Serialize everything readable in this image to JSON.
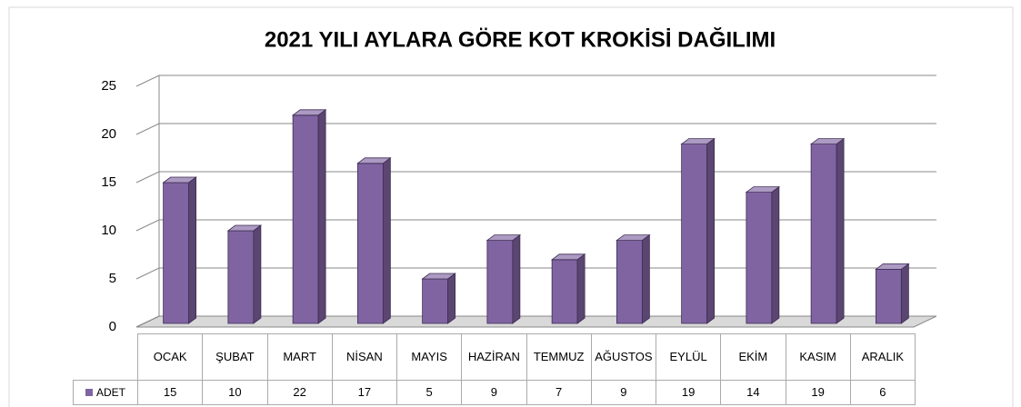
{
  "chart_data": {
    "type": "bar3d",
    "title": "2021 YILI AYLARA GÖRE KOT KROKİSİ DAĞILIMI",
    "categories": [
      "OCAK",
      "ŞUBAT",
      "MART",
      "NİSAN",
      "MAYIS",
      "HAZİRAN",
      "TEMMUZ",
      "AĞUSTOS",
      "EYLÜL",
      "EKİM",
      "KASIM",
      "ARALIK"
    ],
    "series": [
      {
        "name": "ADET",
        "color": "#8064a2",
        "values": [
          15,
          10,
          22,
          17,
          5,
          9,
          7,
          9,
          19,
          14,
          19,
          6
        ]
      }
    ],
    "ylim": [
      0,
      25
    ],
    "yticks": [
      0,
      5,
      10,
      15,
      20,
      25
    ],
    "grid": true,
    "data_table": true
  }
}
